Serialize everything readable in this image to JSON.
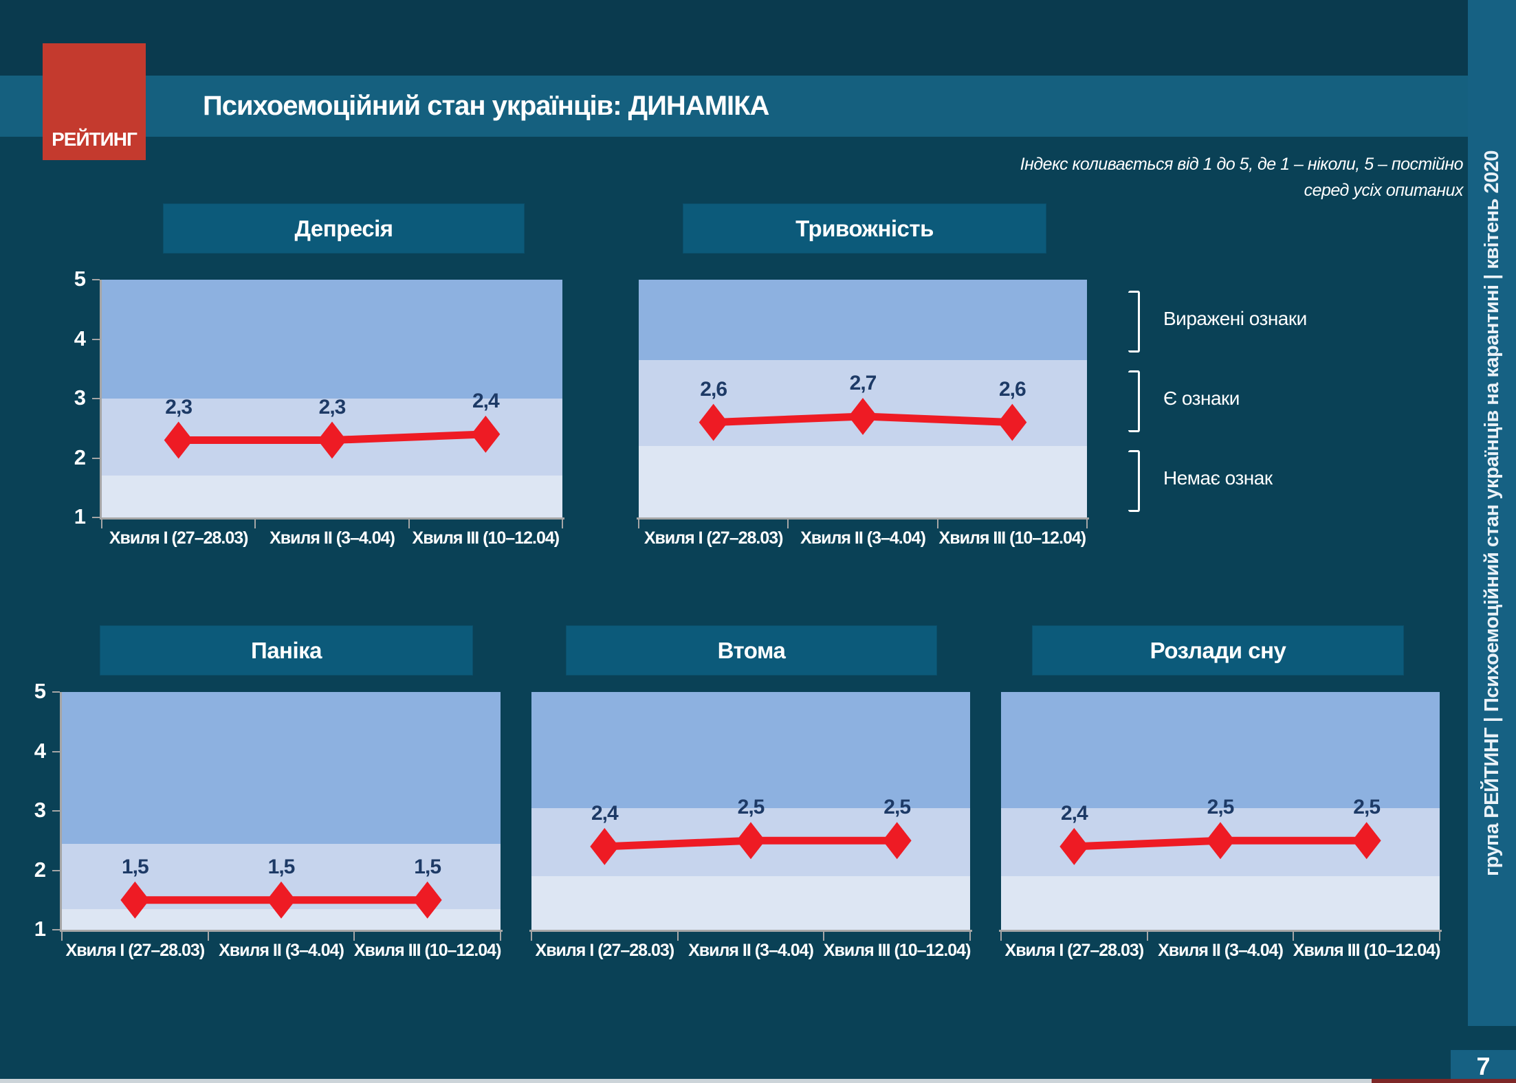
{
  "header": {
    "logo": "РЕЙТИНГ",
    "title": "Психоемоційний стан українців: ДИНАМІКА",
    "note_line1": "Індекс коливається від 1 до 5, де 1 – ніколи, 5 – постійно",
    "note_line2": "серед усіх опитаних"
  },
  "sidebar": {
    "vertical_text": "група РЕЙТИНГ  |  Психоемоційний стан українців на карантині  |  квітень 2020",
    "page_number": "7"
  },
  "legend": {
    "items": [
      {
        "label": "Виражені ознаки"
      },
      {
        "label": "Є ознаки"
      },
      {
        "label": "Немає ознак"
      }
    ]
  },
  "chart_data": {
    "type": "line",
    "categories": [
      "Хвиля I (27–28.03)",
      "Хвиля II (3–4.04)",
      "Хвиля III (10–12.04)"
    ],
    "ylim": [
      1,
      5
    ],
    "y_ticks": [
      5,
      4,
      3,
      2,
      1
    ],
    "grid": false,
    "legend_position": "right",
    "line_color": "#ee1b24",
    "series": [
      {
        "name": "Депресія",
        "values": [
          2.3,
          2.3,
          2.4
        ],
        "labels": [
          "2,3",
          "2,3",
          "2,4"
        ],
        "zones": {
          "nemaye_oznak": [
            1,
            1.7
          ],
          "ye_oznaky": [
            1.7,
            3.0
          ],
          "vyrazheni_oznaky": [
            3.0,
            5
          ]
        }
      },
      {
        "name": "Тривожність",
        "values": [
          2.6,
          2.7,
          2.6
        ],
        "labels": [
          "2,6",
          "2,7",
          "2,6"
        ],
        "zones": {
          "nemaye_oznak": [
            1,
            2.2
          ],
          "ye_oznaky": [
            2.2,
            3.65
          ],
          "vyrazheni_oznaky": [
            3.65,
            5
          ]
        }
      },
      {
        "name": "Паніка",
        "values": [
          1.5,
          1.5,
          1.5
        ],
        "labels": [
          "1,5",
          "1,5",
          "1,5"
        ],
        "zones": {
          "nemaye_oznak": [
            1,
            1.35
          ],
          "ye_oznaky": [
            1.35,
            2.45
          ],
          "vyrazheni_oznaky": [
            2.45,
            5
          ]
        }
      },
      {
        "name": "Втома",
        "values": [
          2.4,
          2.5,
          2.5
        ],
        "labels": [
          "2,4",
          "2,5",
          "2,5"
        ],
        "zones": {
          "nemaye_oznak": [
            1,
            1.9
          ],
          "ye_oznaky": [
            1.9,
            3.05
          ],
          "vyrazheni_oznaky": [
            3.05,
            5
          ]
        }
      },
      {
        "name": "Розлади сну",
        "values": [
          2.4,
          2.5,
          2.5
        ],
        "labels": [
          "2,4",
          "2,5",
          "2,5"
        ],
        "zones": {
          "nemaye_oznak": [
            1,
            1.9
          ],
          "ye_oznaky": [
            1.9,
            3.05
          ],
          "vyrazheni_oznaky": [
            3.05,
            5
          ]
        }
      }
    ]
  },
  "colors": {
    "background": "#0a4156",
    "top_bar": "#0a3a4e",
    "title_band": "#15607f",
    "chart_title_box": "#0c5a7a",
    "sidebar": "#166183",
    "logo_red": "#c43a2e",
    "line_red": "#ee1b24",
    "value_label_navy": "#1d3a66",
    "zone_expressed": "#8db1e0",
    "zone_present": "#c6d4ed",
    "zone_none": "#dde6f3",
    "axis_grey": "#a6a6a6",
    "footer_grey": "#ccd4d9",
    "footer_red": "#7e2727"
  }
}
